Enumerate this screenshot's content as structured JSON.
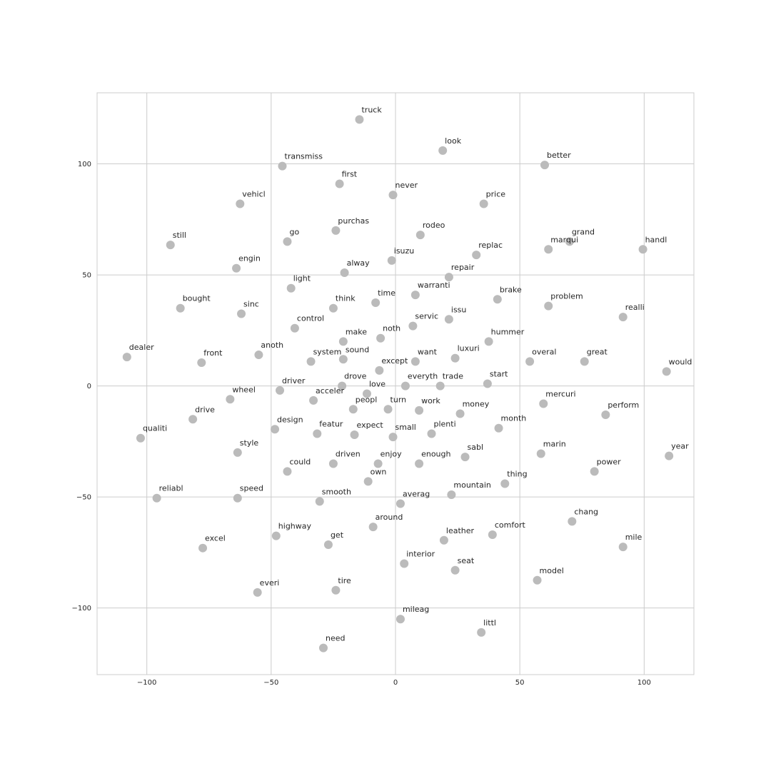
{
  "chart_data": {
    "type": "scatter",
    "title": "",
    "xlabel": "",
    "ylabel": "",
    "xlim": [
      -120,
      120
    ],
    "ylim": [
      -130,
      132
    ],
    "xticks": [
      -100,
      -50,
      0,
      50,
      100
    ],
    "yticks": [
      -100,
      -50,
      0,
      50,
      100
    ],
    "grid": true,
    "point_color": "#bbbbbb",
    "points": [
      {
        "label": "truck",
        "x": -14.5,
        "y": 120
      },
      {
        "label": "look",
        "x": 19,
        "y": 106
      },
      {
        "label": "transmiss",
        "x": -45.5,
        "y": 99
      },
      {
        "label": "better",
        "x": 60,
        "y": 99.5
      },
      {
        "label": "first",
        "x": -22.5,
        "y": 91
      },
      {
        "label": "never",
        "x": -1,
        "y": 86
      },
      {
        "label": "vehicl",
        "x": -62.5,
        "y": 82
      },
      {
        "label": "price",
        "x": 35.5,
        "y": 82
      },
      {
        "label": "purchas",
        "x": -24,
        "y": 70
      },
      {
        "label": "rodeo",
        "x": 10,
        "y": 68
      },
      {
        "label": "go",
        "x": -43.5,
        "y": 65
      },
      {
        "label": "grand",
        "x": 70,
        "y": 65
      },
      {
        "label": "still",
        "x": -90.5,
        "y": 63.5
      },
      {
        "label": "handl",
        "x": 99.5,
        "y": 61.5
      },
      {
        "label": "marqui",
        "x": 61.5,
        "y": 61.5
      },
      {
        "label": "replac",
        "x": 32.5,
        "y": 59
      },
      {
        "label": "isuzu",
        "x": -1.5,
        "y": 56.5
      },
      {
        "label": "engin",
        "x": -64,
        "y": 53
      },
      {
        "label": "alway",
        "x": -20.5,
        "y": 51
      },
      {
        "label": "repair",
        "x": 21.5,
        "y": 49
      },
      {
        "label": "light",
        "x": -42,
        "y": 44
      },
      {
        "label": "warranti",
        "x": 8,
        "y": 41
      },
      {
        "label": "brake",
        "x": 41,
        "y": 39
      },
      {
        "label": "time",
        "x": -8,
        "y": 37.5
      },
      {
        "label": "problem",
        "x": 61.5,
        "y": 36
      },
      {
        "label": "bought",
        "x": -86.5,
        "y": 35
      },
      {
        "label": "think",
        "x": -25,
        "y": 35
      },
      {
        "label": "sinc",
        "x": -62,
        "y": 32.5
      },
      {
        "label": "realli",
        "x": 91.5,
        "y": 31
      },
      {
        "label": "issu",
        "x": 21.5,
        "y": 30
      },
      {
        "label": "servic",
        "x": 7,
        "y": 27
      },
      {
        "label": "control",
        "x": -40.5,
        "y": 26
      },
      {
        "label": "noth",
        "x": -6,
        "y": 21.5
      },
      {
        "label": "hummer",
        "x": 37.5,
        "y": 20
      },
      {
        "label": "make",
        "x": -21,
        "y": 20
      },
      {
        "label": "anoth",
        "x": -55,
        "y": 14
      },
      {
        "label": "dealer",
        "x": -108,
        "y": 13
      },
      {
        "label": "luxuri",
        "x": 24,
        "y": 12.5
      },
      {
        "label": "sound",
        "x": -21,
        "y": 12
      },
      {
        "label": "want",
        "x": 8,
        "y": 11
      },
      {
        "label": "system",
        "x": -34,
        "y": 11
      },
      {
        "label": "overal",
        "x": 54,
        "y": 11
      },
      {
        "label": "great",
        "x": 76,
        "y": 11
      },
      {
        "label": "front",
        "x": -78,
        "y": 10.5
      },
      {
        "label": "except",
        "x": -6.5,
        "y": 7
      },
      {
        "label": "would",
        "x": 109,
        "y": 6.5
      },
      {
        "label": "start",
        "x": 37,
        "y": 1
      },
      {
        "label": "drove",
        "x": -21.5,
        "y": 0
      },
      {
        "label": "everyth",
        "x": 4,
        "y": 0
      },
      {
        "label": "trade",
        "x": 18,
        "y": 0
      },
      {
        "label": "driver",
        "x": -46.5,
        "y": -2
      },
      {
        "label": "love",
        "x": -11.5,
        "y": -3.5
      },
      {
        "label": "wheel",
        "x": -66.5,
        "y": -6
      },
      {
        "label": "acceler",
        "x": -33,
        "y": -6.5
      },
      {
        "label": "mercuri",
        "x": 59.5,
        "y": -8
      },
      {
        "label": "turn",
        "x": -3,
        "y": -10.5
      },
      {
        "label": "peopl",
        "x": -17,
        "y": -10.5
      },
      {
        "label": "work",
        "x": 9.5,
        "y": -11
      },
      {
        "label": "money",
        "x": 26,
        "y": -12.5
      },
      {
        "label": "perform",
        "x": 84.5,
        "y": -13
      },
      {
        "label": "drive",
        "x": -81.5,
        "y": -15
      },
      {
        "label": "month",
        "x": 41.5,
        "y": -19
      },
      {
        "label": "design",
        "x": -48.5,
        "y": -19.5
      },
      {
        "label": "plenti",
        "x": 14.5,
        "y": -21.5
      },
      {
        "label": "featur",
        "x": -31.5,
        "y": -21.5
      },
      {
        "label": "expect",
        "x": -16.5,
        "y": -22
      },
      {
        "label": "small",
        "x": -1,
        "y": -23
      },
      {
        "label": "qualiti",
        "x": -102.5,
        "y": -23.5
      },
      {
        "label": "style",
        "x": -63.5,
        "y": -30
      },
      {
        "label": "marin",
        "x": 58.5,
        "y": -30.5
      },
      {
        "label": "year",
        "x": 110,
        "y": -31.5
      },
      {
        "label": "sabl",
        "x": 28,
        "y": -32
      },
      {
        "label": "enough",
        "x": 9.5,
        "y": -35
      },
      {
        "label": "enjoy",
        "x": -7,
        "y": -35
      },
      {
        "label": "driven",
        "x": -25,
        "y": -35
      },
      {
        "label": "could",
        "x": -43.5,
        "y": -38.5
      },
      {
        "label": "power",
        "x": 80,
        "y": -38.5
      },
      {
        "label": "own",
        "x": -11,
        "y": -43
      },
      {
        "label": "thing",
        "x": 44,
        "y": -44
      },
      {
        "label": "mountain",
        "x": 22.5,
        "y": -49
      },
      {
        "label": "speed",
        "x": -63.5,
        "y": -50.5
      },
      {
        "label": "reliabl",
        "x": -96,
        "y": -50.5
      },
      {
        "label": "smooth",
        "x": -30.5,
        "y": -52
      },
      {
        "label": "averag",
        "x": 2,
        "y": -53
      },
      {
        "label": "chang",
        "x": 71,
        "y": -61
      },
      {
        "label": "around",
        "x": -9,
        "y": -63.5
      },
      {
        "label": "comfort",
        "x": 39,
        "y": -67
      },
      {
        "label": "highway",
        "x": -48,
        "y": -67.5
      },
      {
        "label": "leather",
        "x": 19.5,
        "y": -69.5
      },
      {
        "label": "get",
        "x": -27,
        "y": -71.5
      },
      {
        "label": "mile",
        "x": 91.5,
        "y": -72.5
      },
      {
        "label": "excel",
        "x": -77.5,
        "y": -73
      },
      {
        "label": "interior",
        "x": 3.5,
        "y": -80
      },
      {
        "label": "seat",
        "x": 24,
        "y": -83
      },
      {
        "label": "model",
        "x": 57,
        "y": -87.5
      },
      {
        "label": "tire",
        "x": -24,
        "y": -92
      },
      {
        "label": "everi",
        "x": -55.5,
        "y": -93
      },
      {
        "label": "mileag",
        "x": 2,
        "y": -105
      },
      {
        "label": "littl",
        "x": 34.5,
        "y": -111
      },
      {
        "label": "need",
        "x": -29,
        "y": -118
      }
    ]
  }
}
